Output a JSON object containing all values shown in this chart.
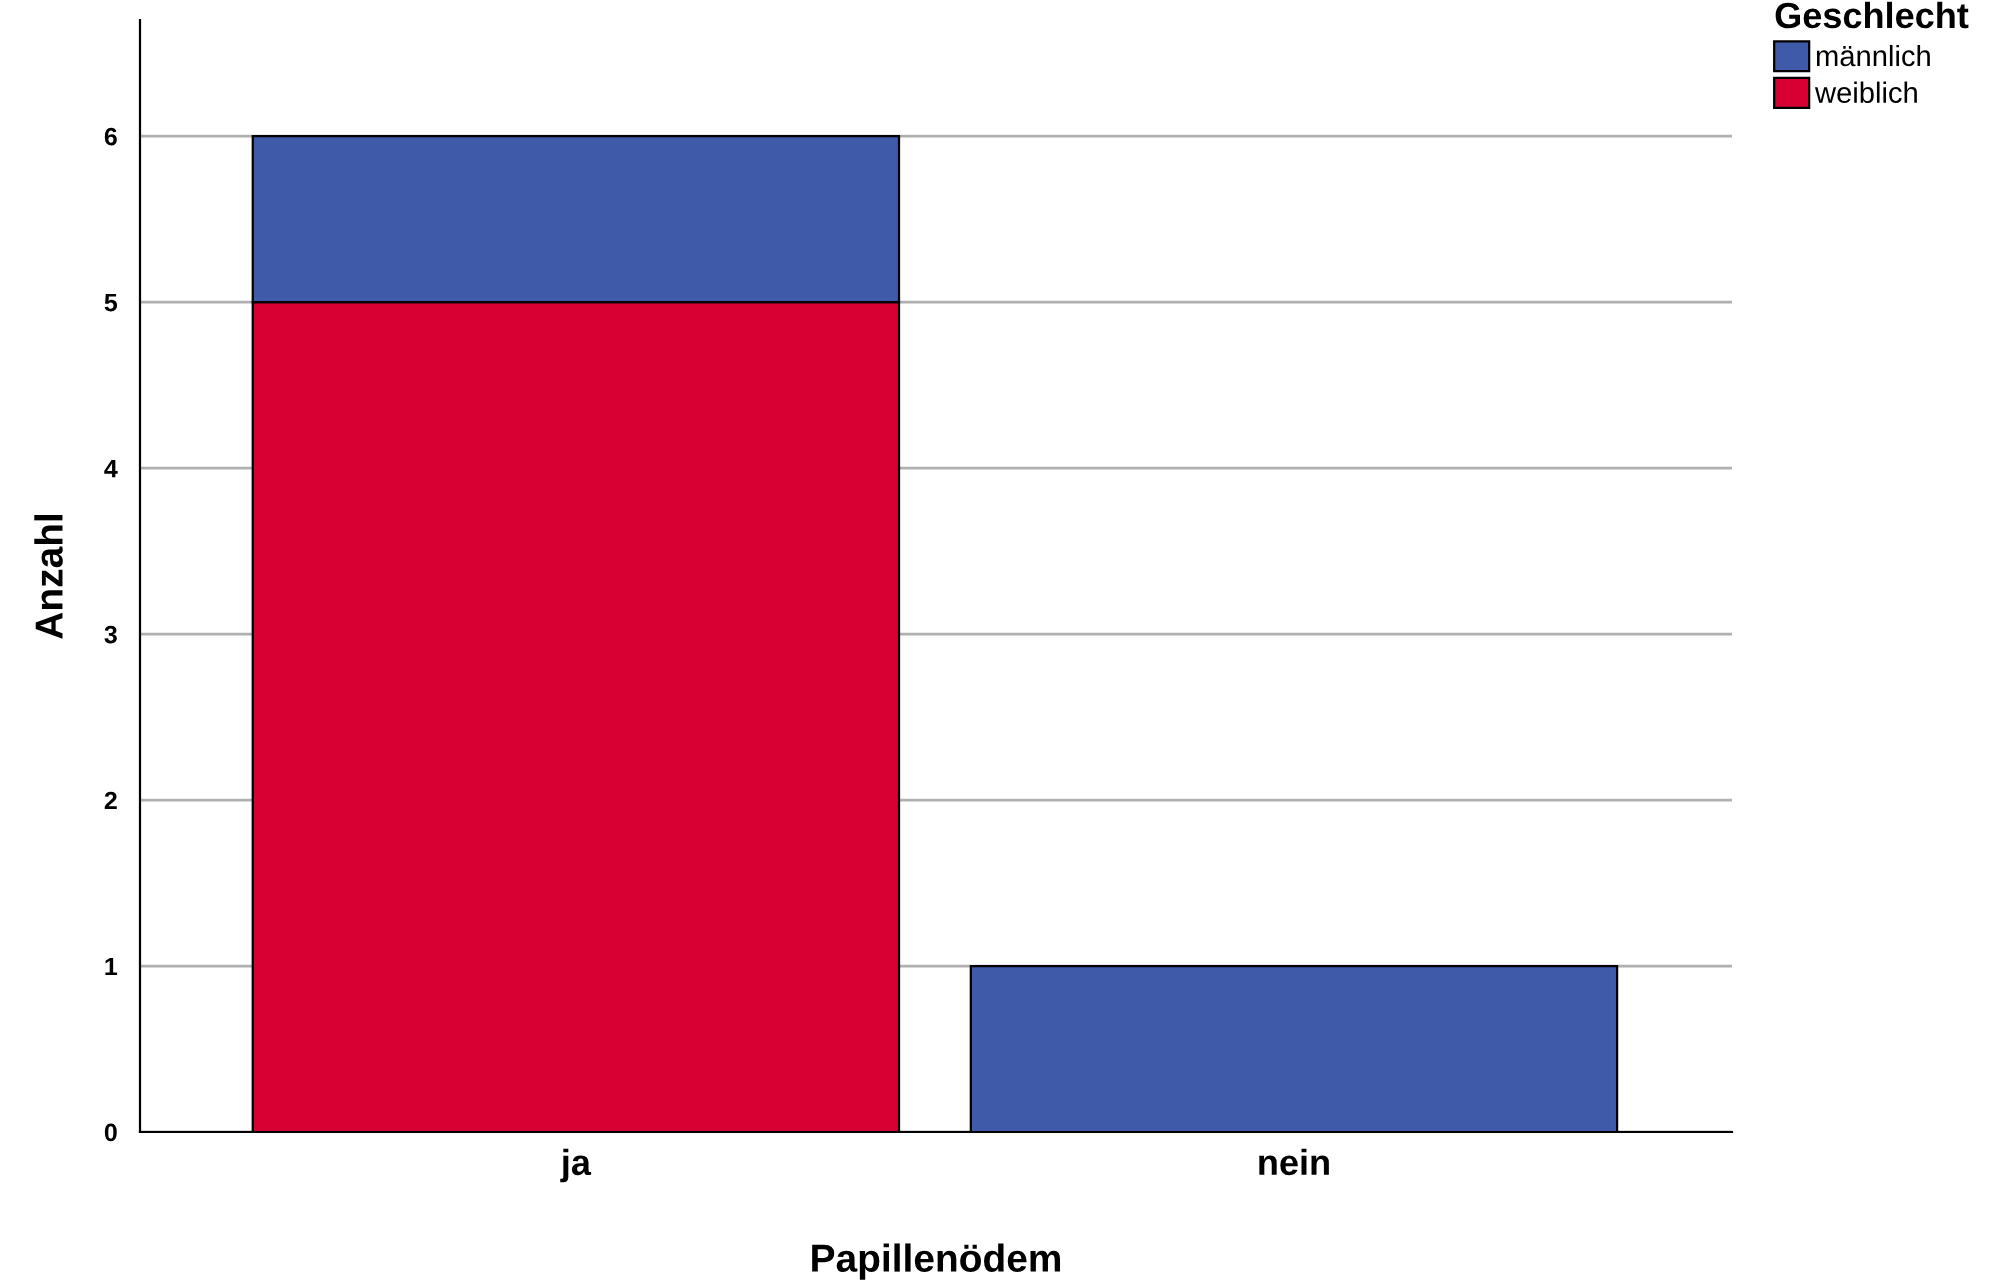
{
  "chart_data": {
    "type": "bar",
    "stacked": true,
    "xlabel": "Papillenödem",
    "ylabel": "Anzahl",
    "legend_title": "Geschlecht",
    "categories": [
      "ja",
      "nein"
    ],
    "series": [
      {
        "name": "weiblich",
        "color": "#d70033",
        "values": [
          5,
          0
        ]
      },
      {
        "name": "männlich",
        "color": "#3e5aa8",
        "values": [
          1,
          1
        ]
      }
    ],
    "ylim": [
      0,
      6.7
    ],
    "yticks": [
      0,
      1,
      2,
      3,
      4,
      5,
      6
    ],
    "grid": "y",
    "legend": "top right"
  }
}
